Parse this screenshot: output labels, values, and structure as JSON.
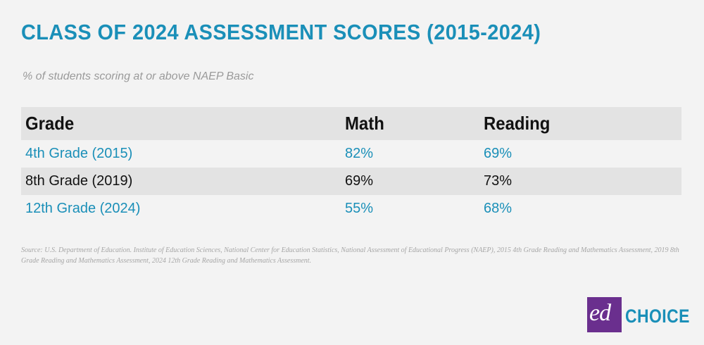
{
  "title": "CLASS OF 2024 ASSESSMENT SCORES (2015-2024)",
  "subtitle": "% of students scoring at or above NAEP Basic",
  "source": "Source: U.S. Department of Education. Institute of Education Sciences, National Center for Education Statistics, National Assessment of Educational Progress (NAEP), 2015 4th Grade Reading and Mathematics Assessment, 2019 8th Grade Reading and Mathematics Assessment, 2024 12th Grade Reading and Mathematics Assessment.",
  "logo": {
    "ed": "ed",
    "choice": "CHOICE"
  },
  "colors": {
    "accent": "#1a8fb8",
    "logo_purple": "#6a2f8e",
    "band": "#e3e3e3",
    "background": "#f3f3f3"
  },
  "chart_data": {
    "type": "table",
    "title": "CLASS OF 2024 ASSESSMENT SCORES (2015-2024)",
    "subtitle": "% of students scoring at or above NAEP Basic",
    "columns": [
      "Grade",
      "Math",
      "Reading"
    ],
    "rows": [
      [
        "4th Grade (2015)",
        "82%",
        "69%"
      ],
      [
        "8th Grade (2019)",
        "69%",
        "73%"
      ],
      [
        "12th Grade (2024)",
        "55%",
        "68%"
      ]
    ]
  }
}
